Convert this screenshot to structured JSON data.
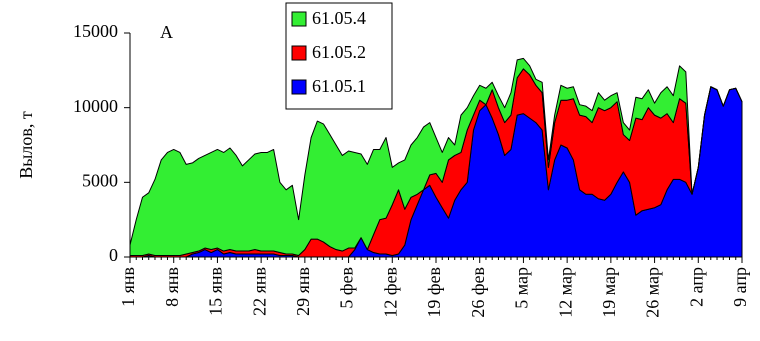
{
  "chart_data": {
    "type": "stacked_area",
    "annotation": "A",
    "y_label": "Вылов, т",
    "categories": [
      "1 янв",
      null,
      null,
      null,
      null,
      null,
      null,
      "8 янв",
      null,
      null,
      null,
      null,
      null,
      null,
      "15 янв",
      null,
      null,
      null,
      null,
      null,
      null,
      "22 янв",
      null,
      null,
      null,
      null,
      null,
      null,
      "29 янв",
      null,
      null,
      null,
      null,
      null,
      null,
      "5 фев",
      null,
      null,
      null,
      null,
      null,
      null,
      "12 фев",
      null,
      null,
      null,
      null,
      null,
      null,
      "19 фев",
      null,
      null,
      null,
      null,
      null,
      null,
      "26 фев",
      null,
      null,
      null,
      null,
      null,
      null,
      "5 мар",
      null,
      null,
      null,
      null,
      null,
      null,
      "12 мар",
      null,
      null,
      null,
      null,
      null,
      null,
      "19 мар",
      null,
      null,
      null,
      null,
      null,
      null,
      "26 мар",
      null,
      null,
      null,
      null,
      null,
      null,
      "2 апр",
      null,
      null,
      null,
      null,
      null,
      null,
      "9 апр"
    ],
    "series": [
      {
        "name": "61.05.1",
        "color": "#0000ff",
        "values": [
          0,
          0,
          0,
          100,
          0,
          0,
          0,
          0,
          0,
          0,
          200,
          300,
          500,
          300,
          500,
          200,
          300,
          200,
          200,
          200,
          200,
          200,
          200,
          200,
          100,
          100,
          100,
          0,
          0,
          0,
          0,
          0,
          0,
          0,
          0,
          0,
          500,
          1300,
          500,
          300,
          200,
          200,
          100,
          200,
          800,
          2500,
          3500,
          4500,
          4800,
          4000,
          3300,
          2600,
          3800,
          4500,
          5000,
          8500,
          9800,
          10200,
          9300,
          8200,
          6800,
          7200,
          9500,
          9600,
          9300,
          9000,
          8500,
          4500,
          6500,
          7500,
          7300,
          6500,
          4500,
          4200,
          4200,
          3900,
          3800,
          4200,
          5000,
          5700,
          5000,
          2800,
          3100,
          3200,
          3300,
          3500,
          4500,
          5200,
          5200,
          5000,
          4200,
          6000,
          9500,
          11400,
          11200,
          10100,
          11200,
          11300,
          10400
        ]
      },
      {
        "name": "61.05.2",
        "color": "#ff0000",
        "values": [
          100,
          100,
          100,
          100,
          100,
          100,
          100,
          100,
          100,
          200,
          100,
          100,
          100,
          200,
          100,
          200,
          200,
          200,
          200,
          200,
          300,
          200,
          200,
          200,
          200,
          100,
          100,
          100,
          500,
          1200,
          1200,
          1000,
          700,
          500,
          400,
          600,
          100,
          0,
          0,
          1200,
          2300,
          2400,
          3400,
          4300,
          2400,
          1500,
          700,
          0,
          700,
          1600,
          1700,
          3900,
          3000,
          2500,
          3500,
          1000,
          700,
          0,
          1900,
          1800,
          2200,
          2300,
          2500,
          3000,
          2900,
          2500,
          2500,
          1500,
          2500,
          3000,
          3200,
          4100,
          5000,
          5200,
          4800,
          6100,
          6000,
          5800,
          5400,
          2500,
          2800,
          6500,
          6100,
          6800,
          6200,
          5800,
          5100,
          3800,
          5400,
          5300,
          0,
          0,
          0,
          0,
          0,
          0,
          0,
          0,
          0
        ]
      },
      {
        "name": "61.05.4",
        "color": "#33ee33",
        "values": [
          700,
          2400,
          3900,
          4100,
          5100,
          6400,
          6900,
          7100,
          6900,
          6000,
          6000,
          6200,
          6200,
          6500,
          6600,
          6600,
          6800,
          6400,
          5700,
          6100,
          6400,
          6600,
          6600,
          6800,
          4700,
          4300,
          4600,
          2400,
          5000,
          6800,
          7900,
          7900,
          7500,
          7000,
          6400,
          6500,
          6400,
          5600,
          5700,
          5700,
          4700,
          5400,
          2500,
          1800,
          3300,
          3500,
          3800,
          4200,
          3500,
          2400,
          2000,
          1500,
          700,
          2500,
          1500,
          1300,
          1000,
          1100,
          500,
          800,
          1000,
          1500,
          1200,
          700,
          600,
          400,
          700,
          500,
          500,
          1000,
          800,
          800,
          700,
          700,
          800,
          1000,
          700,
          800,
          600,
          800,
          700,
          1400,
          1400,
          1200,
          800,
          1700,
          1800,
          1800,
          2200,
          2100,
          0,
          0,
          0,
          0,
          0,
          0,
          0,
          0,
          0
        ]
      }
    ],
    "ylim": [
      0,
      15000
    ],
    "yticks": [
      0,
      5000,
      10000,
      15000
    ],
    "legend": "top-center"
  }
}
